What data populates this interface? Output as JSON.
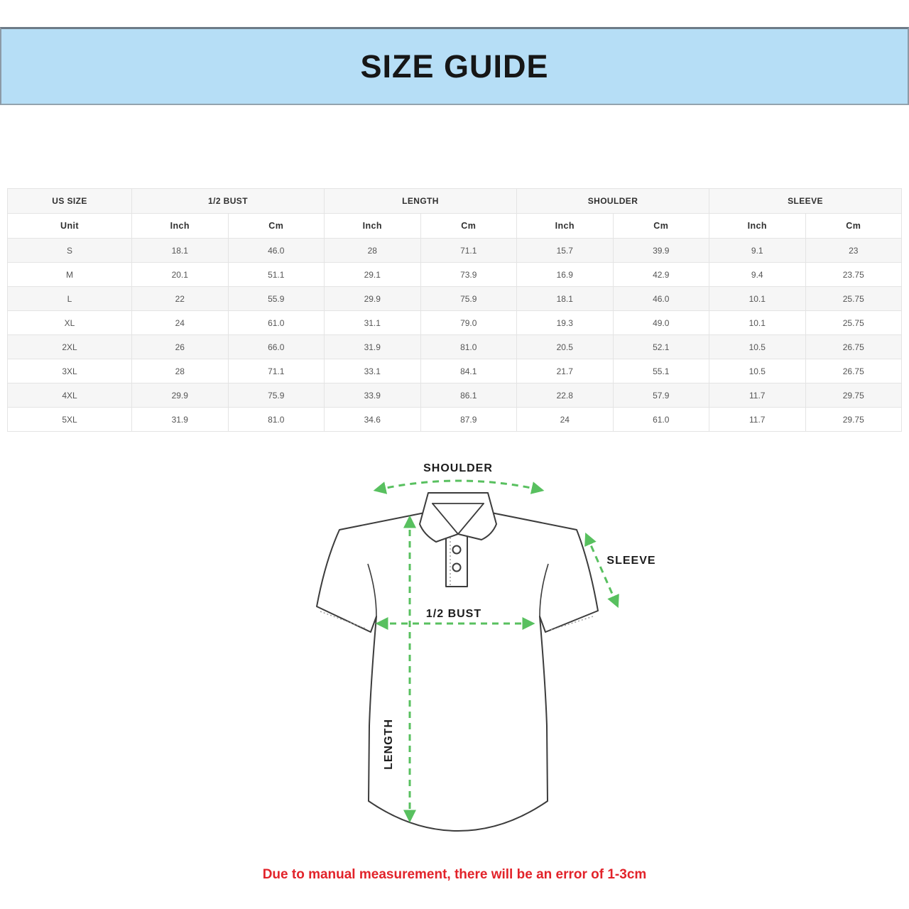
{
  "banner": {
    "title": "SIZE GUIDE"
  },
  "colors": {
    "banner_bg": "#b6def6",
    "arrow_green": "#58c05f",
    "footnote_red": "#e2232a",
    "table_stripe": "#f6f6f6"
  },
  "size_table": {
    "column_groups": [
      "US SIZE",
      "1/2 BUST",
      "LENGTH",
      "SHOULDER",
      "SLEEVE"
    ],
    "unit_headers": [
      "Unit",
      "Inch",
      "Cm",
      "Inch",
      "Cm",
      "Inch",
      "Cm",
      "Inch",
      "Cm"
    ],
    "rows": [
      [
        "S",
        "18.1",
        "46.0",
        "28",
        "71.1",
        "15.7",
        "39.9",
        "9.1",
        "23"
      ],
      [
        "M",
        "20.1",
        "51.1",
        "29.1",
        "73.9",
        "16.9",
        "42.9",
        "9.4",
        "23.75"
      ],
      [
        "L",
        "22",
        "55.9",
        "29.9",
        "75.9",
        "18.1",
        "46.0",
        "10.1",
        "25.75"
      ],
      [
        "XL",
        "24",
        "61.0",
        "31.1",
        "79.0",
        "19.3",
        "49.0",
        "10.1",
        "25.75"
      ],
      [
        "2XL",
        "26",
        "66.0",
        "31.9",
        "81.0",
        "20.5",
        "52.1",
        "10.5",
        "26.75"
      ],
      [
        "3XL",
        "28",
        "71.1",
        "33.1",
        "84.1",
        "21.7",
        "55.1",
        "10.5",
        "26.75"
      ],
      [
        "4XL",
        "29.9",
        "75.9",
        "33.9",
        "86.1",
        "22.8",
        "57.9",
        "11.7",
        "29.75"
      ],
      [
        "5XL",
        "31.9",
        "81.0",
        "34.6",
        "87.9",
        "24",
        "61.0",
        "11.7",
        "29.75"
      ]
    ]
  },
  "diagram": {
    "shoulder_label": "SHOULDER",
    "sleeve_label": "SLEEVE",
    "half_bust_label": "1/2 BUST",
    "length_label": "LENGTH"
  },
  "footnote": "Due to manual measurement, there will be an error of 1-3cm"
}
